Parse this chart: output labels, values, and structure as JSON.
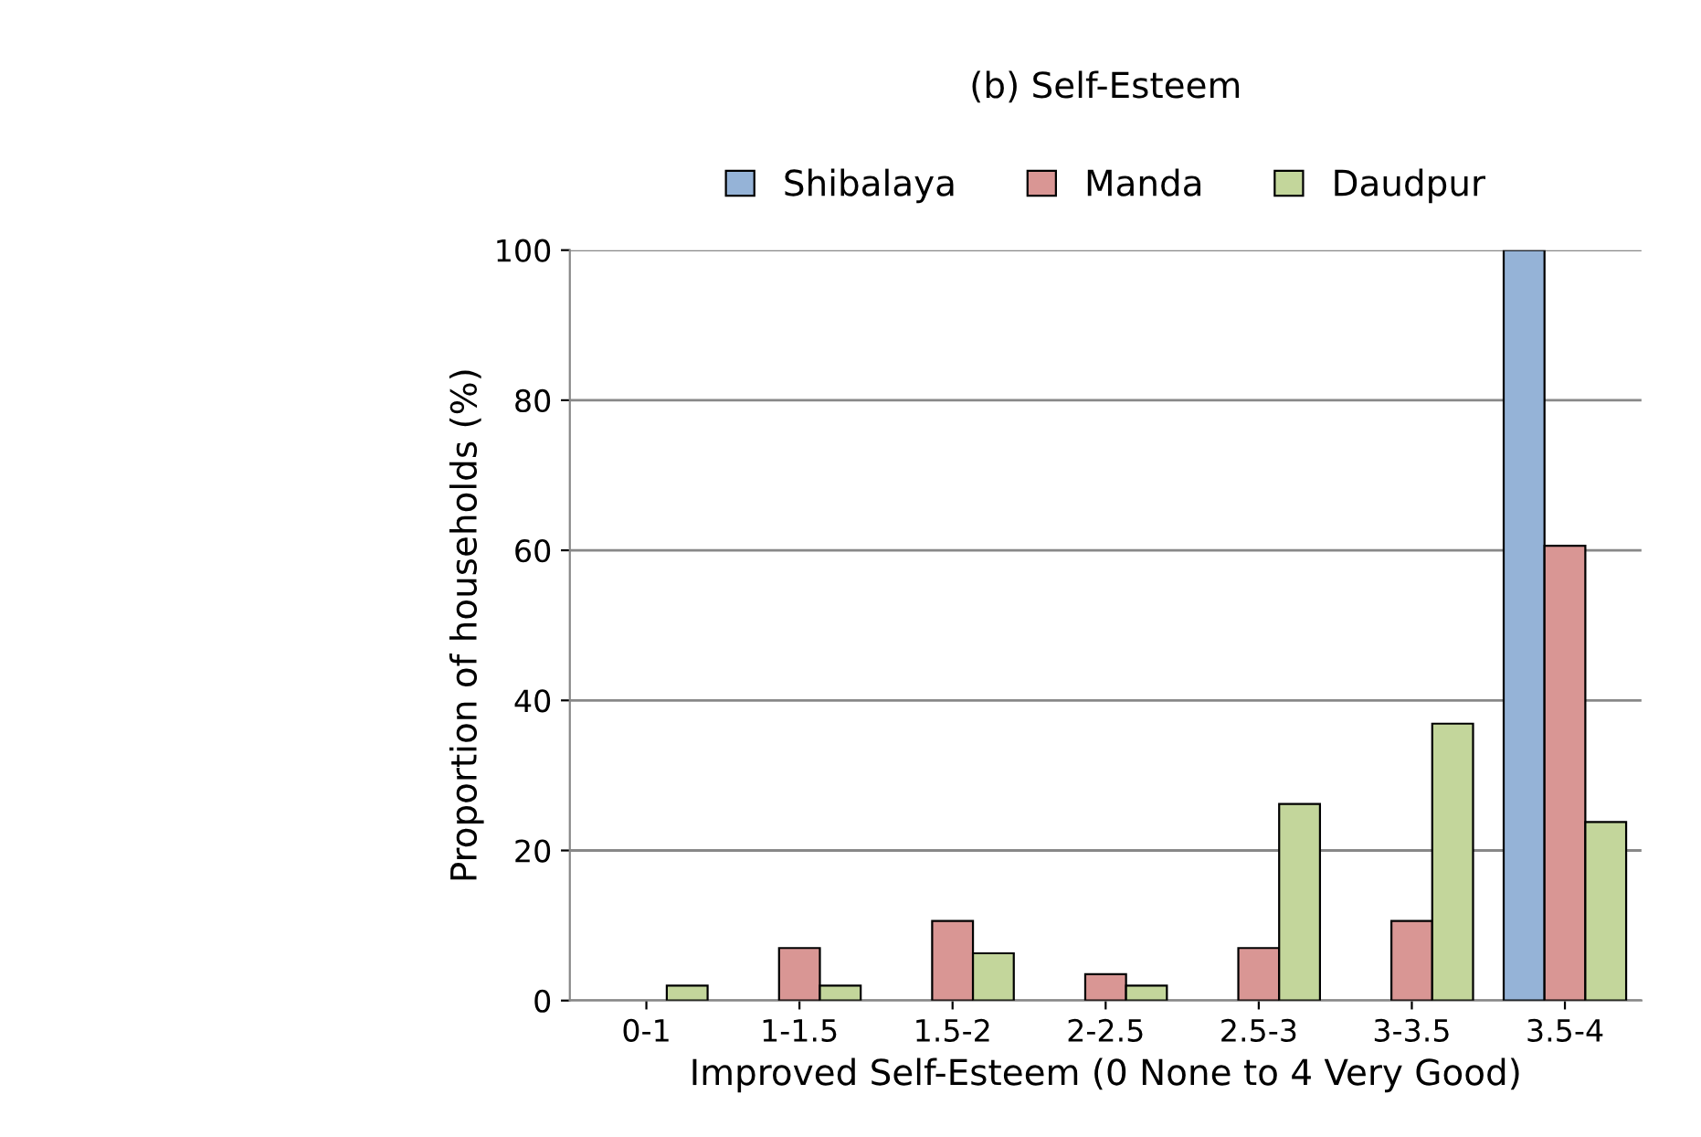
{
  "chart_data": {
    "type": "bar",
    "title": "(b) Self-Esteem",
    "xlabel": "Improved Self-Esteem (0 None to 4 Very Good)",
    "ylabel": "Proportion of households (%)",
    "categories": [
      "0-1",
      "1-1.5",
      "1.5-2",
      "2-2.5",
      "2.5-3",
      "3-3.5",
      "3.5-4"
    ],
    "series": [
      {
        "name": "Shibalaya",
        "color": "#95b3d7",
        "values": [
          null,
          null,
          null,
          null,
          null,
          null,
          100
        ]
      },
      {
        "name": "Manda",
        "color": "#d99694",
        "values": [
          null,
          7.0,
          10.6,
          3.5,
          7.0,
          10.6,
          60.6
        ]
      },
      {
        "name": "Daudpur",
        "color": "#c3d69b",
        "values": [
          2.0,
          2.0,
          6.3,
          2.0,
          26.2,
          36.9,
          23.8
        ]
      }
    ],
    "ylim": [
      0,
      100
    ],
    "yticks": [
      0,
      20,
      40,
      60,
      80,
      100
    ],
    "grid": "y",
    "legend": "top"
  }
}
